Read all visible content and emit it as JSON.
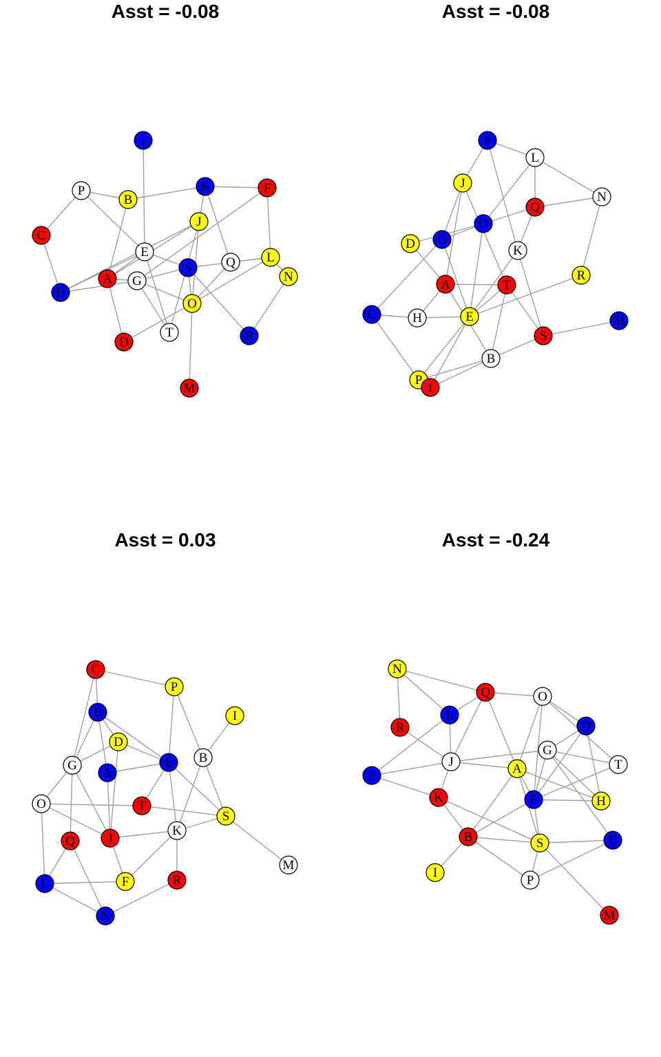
{
  "colors": {
    "red": "#ff0000",
    "blue": "#0000ff",
    "yellow": "#ffff00",
    "white": "#ffffff",
    "edge": "#a0a0a0"
  },
  "panels": [
    {
      "title": "Asst = -0.08",
      "nodes": [
        {
          "id": "I",
          "color": "blue"
        },
        {
          "id": "P",
          "color": "white"
        },
        {
          "id": "B",
          "color": "yellow"
        },
        {
          "id": "K",
          "color": "blue"
        },
        {
          "id": "F",
          "color": "red"
        },
        {
          "id": "J",
          "color": "yellow"
        },
        {
          "id": "C",
          "color": "red"
        },
        {
          "id": "E",
          "color": "white"
        },
        {
          "id": "S",
          "color": "blue"
        },
        {
          "id": "Q",
          "color": "white"
        },
        {
          "id": "L",
          "color": "yellow"
        },
        {
          "id": "N",
          "color": "yellow"
        },
        {
          "id": "H",
          "color": "blue"
        },
        {
          "id": "A",
          "color": "red"
        },
        {
          "id": "G",
          "color": "white"
        },
        {
          "id": "O",
          "color": "yellow"
        },
        {
          "id": "D",
          "color": "red"
        },
        {
          "id": "T",
          "color": "white"
        },
        {
          "id": "R",
          "color": "blue"
        },
        {
          "id": "M",
          "color": "red"
        }
      ],
      "edges": [
        [
          "I",
          "E"
        ],
        [
          "P",
          "B"
        ],
        [
          "P",
          "C"
        ],
        [
          "P",
          "E"
        ],
        [
          "C",
          "H"
        ],
        [
          "B",
          "K"
        ],
        [
          "B",
          "A"
        ],
        [
          "K",
          "F"
        ],
        [
          "K",
          "J"
        ],
        [
          "K",
          "Q"
        ],
        [
          "F",
          "L"
        ],
        [
          "F",
          "G"
        ],
        [
          "J",
          "A"
        ],
        [
          "J",
          "H"
        ],
        [
          "J",
          "T"
        ],
        [
          "J",
          "O"
        ],
        [
          "E",
          "A"
        ],
        [
          "E",
          "S"
        ],
        [
          "E",
          "T"
        ],
        [
          "A",
          "G"
        ],
        [
          "A",
          "D"
        ],
        [
          "H",
          "G"
        ],
        [
          "G",
          "S"
        ],
        [
          "G",
          "T"
        ],
        [
          "G",
          "O"
        ],
        [
          "S",
          "L"
        ],
        [
          "S",
          "O"
        ],
        [
          "Q",
          "L"
        ],
        [
          "Q",
          "O"
        ],
        [
          "L",
          "N"
        ],
        [
          "N",
          "R"
        ],
        [
          "O",
          "M"
        ],
        [
          "O",
          "D"
        ],
        [
          "O",
          "L"
        ],
        [
          "S",
          "R"
        ],
        [
          "H",
          "E"
        ]
      ]
    },
    {
      "title": "Asst = -0.08",
      "nodes": [
        {
          "id": "F",
          "color": "blue"
        },
        {
          "id": "L",
          "color": "white"
        },
        {
          "id": "J",
          "color": "yellow"
        },
        {
          "id": "N",
          "color": "white"
        },
        {
          "id": "Q",
          "color": "red"
        },
        {
          "id": "O",
          "color": "blue"
        },
        {
          "id": "D",
          "color": "yellow"
        },
        {
          "id": "G",
          "color": "blue"
        },
        {
          "id": "K",
          "color": "white"
        },
        {
          "id": "R",
          "color": "yellow"
        },
        {
          "id": "A",
          "color": "red"
        },
        {
          "id": "T",
          "color": "red"
        },
        {
          "id": "C",
          "color": "blue"
        },
        {
          "id": "H",
          "color": "white"
        },
        {
          "id": "E",
          "color": "yellow"
        },
        {
          "id": "M",
          "color": "blue"
        },
        {
          "id": "S",
          "color": "red"
        },
        {
          "id": "B",
          "color": "white"
        },
        {
          "id": "P",
          "color": "yellow"
        },
        {
          "id": "I",
          "color": "red"
        }
      ],
      "edges": [
        [
          "F",
          "L"
        ],
        [
          "F",
          "J"
        ],
        [
          "F",
          "K"
        ],
        [
          "L",
          "N"
        ],
        [
          "L",
          "O"
        ],
        [
          "L",
          "Q"
        ],
        [
          "J",
          "G"
        ],
        [
          "J",
          "A"
        ],
        [
          "J",
          "T"
        ],
        [
          "N",
          "Q"
        ],
        [
          "N",
          "R"
        ],
        [
          "Q",
          "O"
        ],
        [
          "Q",
          "K"
        ],
        [
          "O",
          "D"
        ],
        [
          "O",
          "E"
        ],
        [
          "O",
          "G"
        ],
        [
          "D",
          "A"
        ],
        [
          "G",
          "C"
        ],
        [
          "G",
          "E"
        ],
        [
          "K",
          "E"
        ],
        [
          "K",
          "S"
        ],
        [
          "A",
          "H"
        ],
        [
          "A",
          "B"
        ],
        [
          "A",
          "T"
        ],
        [
          "T",
          "B"
        ],
        [
          "T",
          "E"
        ],
        [
          "C",
          "H"
        ],
        [
          "C",
          "P"
        ],
        [
          "H",
          "E"
        ],
        [
          "E",
          "R"
        ],
        [
          "E",
          "P"
        ],
        [
          "E",
          "I"
        ],
        [
          "S",
          "M"
        ],
        [
          "S",
          "B"
        ],
        [
          "B",
          "P"
        ],
        [
          "B",
          "I"
        ],
        [
          "T",
          "S"
        ]
      ]
    },
    {
      "title": "Asst = 0.03",
      "nodes": [
        {
          "id": "C",
          "color": "red"
        },
        {
          "id": "P",
          "color": "yellow"
        },
        {
          "id": "H",
          "color": "blue"
        },
        {
          "id": "I",
          "color": "yellow"
        },
        {
          "id": "D",
          "color": "yellow"
        },
        {
          "id": "G",
          "color": "white"
        },
        {
          "id": "E",
          "color": "blue"
        },
        {
          "id": "B",
          "color": "white"
        },
        {
          "id": "A",
          "color": "blue"
        },
        {
          "id": "O",
          "color": "white"
        },
        {
          "id": "T",
          "color": "red"
        },
        {
          "id": "S",
          "color": "yellow"
        },
        {
          "id": "K",
          "color": "white"
        },
        {
          "id": "Q",
          "color": "red"
        },
        {
          "id": "J",
          "color": "red"
        },
        {
          "id": "M",
          "color": "white"
        },
        {
          "id": "L",
          "color": "blue"
        },
        {
          "id": "F",
          "color": "yellow"
        },
        {
          "id": "R",
          "color": "red"
        },
        {
          "id": "N",
          "color": "blue"
        }
      ],
      "edges": [
        [
          "C",
          "P"
        ],
        [
          "C",
          "H"
        ],
        [
          "C",
          "G"
        ],
        [
          "P",
          "E"
        ],
        [
          "P",
          "B"
        ],
        [
          "H",
          "D"
        ],
        [
          "H",
          "A"
        ],
        [
          "H",
          "E"
        ],
        [
          "H",
          "G"
        ],
        [
          "I",
          "B"
        ],
        [
          "D",
          "G"
        ],
        [
          "D",
          "J"
        ],
        [
          "D",
          "E"
        ],
        [
          "G",
          "O"
        ],
        [
          "G",
          "Q"
        ],
        [
          "G",
          "J"
        ],
        [
          "E",
          "A"
        ],
        [
          "E",
          "K"
        ],
        [
          "E",
          "S"
        ],
        [
          "E",
          "T"
        ],
        [
          "B",
          "K"
        ],
        [
          "B",
          "S"
        ],
        [
          "A",
          "J"
        ],
        [
          "O",
          "T"
        ],
        [
          "O",
          "L"
        ],
        [
          "O",
          "J"
        ],
        [
          "T",
          "S"
        ],
        [
          "S",
          "K"
        ],
        [
          "S",
          "M"
        ],
        [
          "K",
          "J"
        ],
        [
          "K",
          "F"
        ],
        [
          "K",
          "R"
        ],
        [
          "Q",
          "L"
        ],
        [
          "Q",
          "N"
        ],
        [
          "J",
          "F"
        ],
        [
          "L",
          "F"
        ],
        [
          "L",
          "N"
        ],
        [
          "N",
          "R"
        ]
      ]
    },
    {
      "title": "Asst = -0.24",
      "nodes": [
        {
          "id": "N",
          "color": "yellow"
        },
        {
          "id": "Q",
          "color": "red"
        },
        {
          "id": "O",
          "color": "white"
        },
        {
          "id": "L",
          "color": "blue"
        },
        {
          "id": "R",
          "color": "red"
        },
        {
          "id": "D",
          "color": "blue"
        },
        {
          "id": "G",
          "color": "white"
        },
        {
          "id": "J",
          "color": "white"
        },
        {
          "id": "A",
          "color": "yellow"
        },
        {
          "id": "T",
          "color": "white"
        },
        {
          "id": "F",
          "color": "blue"
        },
        {
          "id": "K",
          "color": "red"
        },
        {
          "id": "E",
          "color": "blue"
        },
        {
          "id": "H",
          "color": "yellow"
        },
        {
          "id": "C",
          "color": "blue"
        },
        {
          "id": "B",
          "color": "red"
        },
        {
          "id": "S",
          "color": "yellow"
        },
        {
          "id": "I",
          "color": "yellow"
        },
        {
          "id": "P",
          "color": "white"
        },
        {
          "id": "M",
          "color": "red"
        }
      ],
      "edges": [
        [
          "N",
          "R"
        ],
        [
          "N",
          "L"
        ],
        [
          "N",
          "Q"
        ],
        [
          "Q",
          "O"
        ],
        [
          "Q",
          "L"
        ],
        [
          "Q",
          "J"
        ],
        [
          "O",
          "D"
        ],
        [
          "O",
          "T"
        ],
        [
          "O",
          "A"
        ],
        [
          "O",
          "E"
        ],
        [
          "L",
          "J"
        ],
        [
          "L",
          "F"
        ],
        [
          "R",
          "J"
        ],
        [
          "D",
          "G"
        ],
        [
          "D",
          "E"
        ],
        [
          "G",
          "J"
        ],
        [
          "G",
          "E"
        ],
        [
          "G",
          "C"
        ],
        [
          "G",
          "T"
        ],
        [
          "G",
          "H"
        ],
        [
          "J",
          "A"
        ],
        [
          "J",
          "K"
        ],
        [
          "J",
          "F"
        ],
        [
          "A",
          "E"
        ],
        [
          "A",
          "H"
        ],
        [
          "A",
          "S"
        ],
        [
          "F",
          "K"
        ],
        [
          "K",
          "B"
        ],
        [
          "K",
          "S"
        ],
        [
          "E",
          "B"
        ],
        [
          "E",
          "S"
        ],
        [
          "E",
          "H"
        ],
        [
          "E",
          "T"
        ],
        [
          "B",
          "I"
        ],
        [
          "B",
          "P"
        ],
        [
          "B",
          "S"
        ],
        [
          "B",
          "A"
        ],
        [
          "S",
          "M"
        ],
        [
          "S",
          "P"
        ],
        [
          "S",
          "C"
        ],
        [
          "P",
          "C"
        ],
        [
          "H",
          "D"
        ],
        [
          "Q",
          "A"
        ]
      ]
    }
  ]
}
